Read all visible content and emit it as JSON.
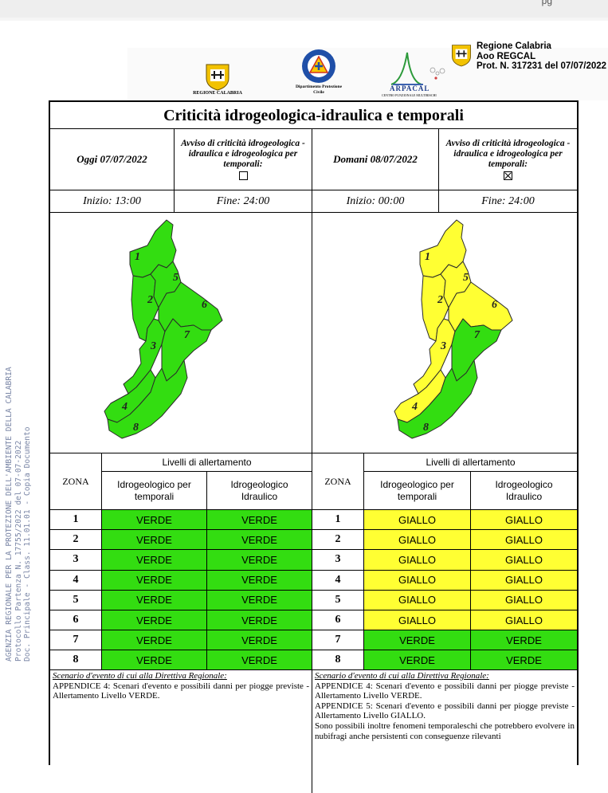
{
  "page_mark": "pg",
  "watermark": {
    "lines": [
      "AGENZIA REGIONALE PER LA PROTEZIONE DELL'AMBIENTE DELLA CALABRIA",
      "Protocollo Partenza N. 17755/2022 del 07-07-2022",
      "Doc. Principale - Class. 11.01.01 - Copia Documento"
    ]
  },
  "header": {
    "logo_left_caption": "REGIONE CALABRIA",
    "logo_center_caption": "Dipartimento Protezione Civile",
    "logo_right_caption": "ARPACAL",
    "logo_right_sub": "CENTRO FUNZIONALE MULTIRISCHI",
    "protocol": [
      "Regione Calabria",
      "Aoo REGCAL",
      "Prot. N. 317231 del 07/07/2022"
    ]
  },
  "title": "Criticità idrogeologica-idraulica e temporali",
  "today": {
    "date_label": "Oggi 07/07/2022",
    "avviso_label": "Avviso di criticità idrogeologica - idraulica e idrogeologica per temporali:",
    "avviso_checked": false,
    "start": "Inizio: 13:00",
    "end": "Fine: 24:00",
    "zone_colors": [
      "#33dd11",
      "#33dd11",
      "#33dd11",
      "#33dd11",
      "#33dd11",
      "#33dd11",
      "#33dd11",
      "#33dd11"
    ]
  },
  "tomorrow": {
    "date_label": "Domani 08/07/2022",
    "avviso_label": "Avviso di criticità idrogeologica - idraulica e idrogeologica per temporali:",
    "avviso_checked": true,
    "start": "Inizio: 00:00",
    "end": "Fine: 24:00",
    "zone_colors": [
      "#ffff33",
      "#ffff33",
      "#ffff33",
      "#ffff33",
      "#ffff33",
      "#ffff33",
      "#33dd11",
      "#33dd11"
    ]
  },
  "map_zone_labels": [
    "1",
    "2",
    "3",
    "4",
    "5",
    "6",
    "7",
    "8"
  ],
  "table": {
    "zona_header": "ZONA",
    "levels_header": "Livelli di allertamento",
    "col1_header": "Idrogeologico per temporali",
    "col2_header": "Idrogeologico Idraulico",
    "today_rows": [
      {
        "zona": "1",
        "a": "VERDE",
        "b": "VERDE"
      },
      {
        "zona": "2",
        "a": "VERDE",
        "b": "VERDE"
      },
      {
        "zona": "3",
        "a": "VERDE",
        "b": "VERDE"
      },
      {
        "zona": "4",
        "a": "VERDE",
        "b": "VERDE"
      },
      {
        "zona": "5",
        "a": "VERDE",
        "b": "VERDE"
      },
      {
        "zona": "6",
        "a": "VERDE",
        "b": "VERDE"
      },
      {
        "zona": "7",
        "a": "VERDE",
        "b": "VERDE"
      },
      {
        "zona": "8",
        "a": "VERDE",
        "b": "VERDE"
      }
    ],
    "tomorrow_rows": [
      {
        "zona": "1",
        "a": "GIALLO",
        "b": "GIALLO"
      },
      {
        "zona": "2",
        "a": "GIALLO",
        "b": "GIALLO"
      },
      {
        "zona": "3",
        "a": "GIALLO",
        "b": "GIALLO"
      },
      {
        "zona": "4",
        "a": "GIALLO",
        "b": "GIALLO"
      },
      {
        "zona": "5",
        "a": "GIALLO",
        "b": "GIALLO"
      },
      {
        "zona": "6",
        "a": "GIALLO",
        "b": "GIALLO"
      },
      {
        "zona": "7",
        "a": "VERDE",
        "b": "VERDE"
      },
      {
        "zona": "8",
        "a": "VERDE",
        "b": "VERDE"
      }
    ]
  },
  "colors": {
    "verde": "#33dd11",
    "giallo": "#ffff33"
  },
  "scenario": {
    "heading": "Scenario d'evento di cui alla Direttiva Regionale:",
    "today_text": "APPENDICE 4: Scenari d'evento e possibili danni per piogge previste - Allertamento Livello VERDE.",
    "tomorrow_text_1": "APPENDICE 4: Scenari d'evento e possibili danni per piogge previste - Allertamento Livello VERDE.",
    "tomorrow_text_2": "APPENDICE 5: Scenari d'evento e possibili danni per piogge previste - Allertamento Livello GIALLO.",
    "tomorrow_text_3": "Sono possibili inoltre fenomeni temporaleschi che potrebbero evolvere in nubifragi anche persistenti con conseguenze rilevanti"
  }
}
